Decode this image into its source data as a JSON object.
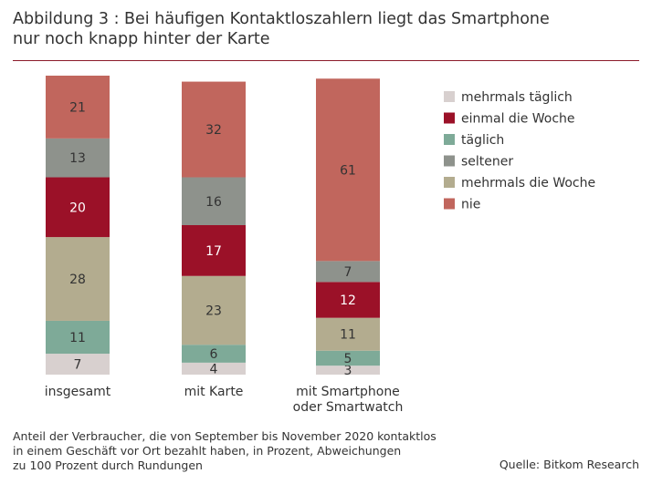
{
  "title_line1": "Abbildung 3 : Bei häufigen Kontaktloszahlern liegt das Smartphone",
  "title_line2": "nur noch knapp hinter der Karte",
  "footnote_line1": "Anteil der Verbraucher, die von September bis November 2020 kontaktlos",
  "footnote_line2": "in einem Geschäft vor Ort bezahlt haben, in Prozent, Abweichungen",
  "footnote_line3": "zu 100 Prozent durch Rundungen",
  "source": "Quelle: Bitkom Research",
  "chart_data": {
    "type": "bar",
    "stacked": true,
    "title": "Abbildung 3 : Bei häufigen Kontaktloszahlern liegt das Smartphone nur noch knapp hinter der Karte",
    "categories": [
      [
        "insgesamt"
      ],
      [
        "mit Karte"
      ],
      [
        "mit Smartphone",
        "oder Smartwatch"
      ]
    ],
    "ylim": [
      0,
      100
    ],
    "legend_position": "right",
    "series": [
      {
        "name": "mehrmals täglich",
        "color": "#d8d0cf",
        "values": [
          7,
          4,
          3
        ]
      },
      {
        "name": "täglich",
        "color": "#7eaa98",
        "values": [
          11,
          6,
          5
        ]
      },
      {
        "name": "mehrmals die Woche",
        "color": "#b3ac8f",
        "values": [
          28,
          23,
          11
        ]
      },
      {
        "name": "einmal die Woche",
        "color": "#9b1128",
        "values": [
          20,
          17,
          12
        ]
      },
      {
        "name": "seltener",
        "color": "#8e928c",
        "values": [
          13,
          16,
          7
        ]
      },
      {
        "name": "nie",
        "color": "#c1665d",
        "values": [
          21,
          32,
          61
        ]
      }
    ],
    "legend_order": [
      "mehrmals täglich",
      "einmal die Woche",
      "täglich",
      "seltener",
      "mehrmals die Woche",
      "nie"
    ],
    "light_label_series": [
      "einmal die Woche"
    ]
  }
}
